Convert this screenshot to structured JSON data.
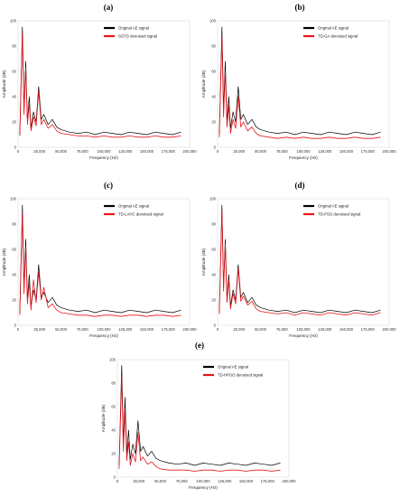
{
  "chart_data": [
    {
      "type": "line",
      "panel_label": "(a)",
      "xlabel": "Frequency (Hz)",
      "ylabel": "Amplitude (dB)",
      "xlim": [
        0,
        200000
      ],
      "ylim": [
        0,
        100
      ],
      "x_ticks": [
        "0",
        "25,000",
        "50,000",
        "75,000",
        "100,000",
        "125,000",
        "150,000",
        "175,000",
        "200,000"
      ],
      "y_ticks": [
        "0",
        "20",
        "40",
        "60",
        "80",
        "100"
      ],
      "legend_position": "top-right",
      "colors": {
        "original": "#000000",
        "denoised": "#e8141b"
      },
      "series": [
        {
          "name": "Original AE signal",
          "x": [
            2000,
            5000,
            7000,
            9000,
            11000,
            13000,
            15000,
            18000,
            21000,
            24000,
            27000,
            30000,
            35000,
            40000,
            45000,
            50000,
            60000,
            70000,
            80000,
            90000,
            100000,
            110000,
            120000,
            130000,
            140000,
            150000,
            160000,
            170000,
            180000,
            190000
          ],
          "y": [
            10,
            95,
            30,
            68,
            20,
            40,
            15,
            28,
            20,
            48,
            22,
            26,
            18,
            22,
            16,
            14,
            12,
            11,
            12,
            10,
            12,
            11,
            10,
            12,
            11,
            10,
            12,
            11,
            10,
            12
          ]
        },
        {
          "name": "SOTD denoised signal",
          "x": [
            2000,
            5000,
            7000,
            9000,
            11000,
            13000,
            15000,
            18000,
            21000,
            24000,
            27000,
            30000,
            35000,
            40000,
            45000,
            50000,
            60000,
            70000,
            80000,
            90000,
            100000,
            110000,
            120000,
            130000,
            140000,
            150000,
            160000,
            170000,
            180000,
            190000
          ],
          "y": [
            9,
            90,
            26,
            63,
            18,
            35,
            13,
            24,
            17,
            44,
            18,
            22,
            15,
            18,
            13,
            11,
            10,
            9,
            9,
            8,
            9,
            8,
            8,
            9,
            8,
            8,
            9,
            8,
            8,
            9
          ]
        }
      ]
    },
    {
      "type": "line",
      "panel_label": "(b)",
      "xlabel": "Frequency (Hz)",
      "ylabel": "Amplitude (dB)",
      "xlim": [
        0,
        200000
      ],
      "ylim": [
        0,
        100
      ],
      "x_ticks": [
        "0",
        "25,000",
        "50,000",
        "75,000",
        "100,000",
        "125,000",
        "150,000",
        "175,000",
        "200,000"
      ],
      "y_ticks": [
        "0",
        "20",
        "40",
        "60",
        "80",
        "100"
      ],
      "legend_position": "top-right",
      "colors": {
        "original": "#000000",
        "denoised": "#e8141b"
      },
      "series": [
        {
          "name": "Original AE signal",
          "x": [
            2000,
            5000,
            7000,
            9000,
            11000,
            13000,
            15000,
            18000,
            21000,
            24000,
            27000,
            30000,
            35000,
            40000,
            45000,
            50000,
            60000,
            70000,
            80000,
            90000,
            100000,
            110000,
            120000,
            130000,
            140000,
            150000,
            160000,
            170000,
            180000,
            190000
          ],
          "y": [
            10,
            95,
            30,
            68,
            20,
            40,
            15,
            28,
            20,
            48,
            22,
            26,
            18,
            22,
            16,
            14,
            12,
            11,
            12,
            10,
            12,
            11,
            10,
            12,
            11,
            10,
            12,
            11,
            10,
            12
          ]
        },
        {
          "name": "TD-GA denoised signal",
          "x": [
            2000,
            5000,
            7000,
            9000,
            11000,
            13000,
            15000,
            18000,
            21000,
            24000,
            27000,
            30000,
            35000,
            40000,
            45000,
            50000,
            60000,
            70000,
            80000,
            90000,
            100000,
            110000,
            120000,
            130000,
            140000,
            150000,
            160000,
            170000,
            180000,
            190000
          ],
          "y": [
            8,
            88,
            24,
            60,
            16,
            33,
            11,
            22,
            15,
            40,
            16,
            20,
            13,
            16,
            11,
            9,
            8,
            7,
            8,
            7,
            8,
            7,
            7,
            8,
            7,
            7,
            8,
            7,
            7,
            8
          ]
        }
      ]
    },
    {
      "type": "line",
      "panel_label": "(c)",
      "xlabel": "Frequency (Hz)",
      "ylabel": "Amplitude (dB)",
      "xlim": [
        0,
        200000
      ],
      "ylim": [
        0,
        100
      ],
      "x_ticks": [
        "0",
        "25,000",
        "50,000",
        "75,000",
        "100,000",
        "125,000",
        "150,000",
        "175,000",
        "200,000"
      ],
      "y_ticks": [
        "0",
        "20",
        "40",
        "60",
        "80",
        "100"
      ],
      "legend_position": "top-right",
      "colors": {
        "original": "#000000",
        "denoised": "#e8141b"
      },
      "series": [
        {
          "name": "Original AE signal",
          "x": [
            2000,
            5000,
            7000,
            9000,
            11000,
            13000,
            15000,
            18000,
            21000,
            24000,
            27000,
            30000,
            35000,
            40000,
            45000,
            50000,
            60000,
            70000,
            80000,
            90000,
            100000,
            110000,
            120000,
            130000,
            140000,
            150000,
            160000,
            170000,
            180000,
            190000
          ],
          "y": [
            10,
            95,
            30,
            68,
            20,
            40,
            15,
            28,
            20,
            48,
            22,
            26,
            18,
            22,
            16,
            14,
            12,
            11,
            12,
            10,
            12,
            11,
            10,
            12,
            11,
            10,
            12,
            11,
            10,
            12
          ]
        },
        {
          "name": "TD-LAHC denoised signal",
          "x": [
            2000,
            5000,
            7000,
            9000,
            11000,
            13000,
            15000,
            18000,
            21000,
            24000,
            27000,
            30000,
            35000,
            40000,
            45000,
            50000,
            60000,
            70000,
            80000,
            90000,
            100000,
            110000,
            120000,
            130000,
            140000,
            150000,
            160000,
            170000,
            180000,
            190000
          ],
          "y": [
            8,
            89,
            25,
            62,
            17,
            34,
            12,
            36,
            18,
            42,
            20,
            30,
            14,
            17,
            12,
            10,
            9,
            8,
            8,
            7,
            8,
            8,
            7,
            8,
            8,
            7,
            8,
            8,
            7,
            8
          ]
        }
      ]
    },
    {
      "type": "line",
      "panel_label": "(d)",
      "xlabel": "Frequency (Hz)",
      "ylabel": "Amplitude (dB)",
      "xlim": [
        0,
        200000
      ],
      "ylim": [
        0,
        100
      ],
      "x_ticks": [
        "0",
        "25,000",
        "50,000",
        "75,000",
        "100,000",
        "125,000",
        "150,000",
        "175,000",
        "200,000"
      ],
      "y_ticks": [
        "0",
        "20",
        "40",
        "60",
        "80",
        "100"
      ],
      "legend_position": "top-right",
      "colors": {
        "original": "#000000",
        "denoised": "#e8141b"
      },
      "series": [
        {
          "name": "Original AE signal",
          "x": [
            2000,
            5000,
            7000,
            9000,
            11000,
            13000,
            15000,
            18000,
            21000,
            24000,
            27000,
            30000,
            35000,
            40000,
            45000,
            50000,
            60000,
            70000,
            80000,
            90000,
            100000,
            110000,
            120000,
            130000,
            140000,
            150000,
            160000,
            170000,
            180000,
            190000
          ],
          "y": [
            10,
            95,
            30,
            68,
            20,
            40,
            15,
            28,
            20,
            48,
            22,
            26,
            18,
            22,
            16,
            14,
            12,
            11,
            12,
            10,
            12,
            11,
            10,
            12,
            11,
            10,
            12,
            11,
            10,
            12
          ]
        },
        {
          "name": "TD-PSO denoised signal",
          "x": [
            2000,
            5000,
            7000,
            9000,
            11000,
            13000,
            15000,
            18000,
            21000,
            24000,
            27000,
            30000,
            35000,
            40000,
            45000,
            50000,
            60000,
            70000,
            80000,
            90000,
            100000,
            110000,
            120000,
            130000,
            140000,
            150000,
            160000,
            170000,
            180000,
            190000
          ],
          "y": [
            9,
            91,
            27,
            64,
            18,
            36,
            13,
            25,
            17,
            45,
            19,
            23,
            16,
            19,
            13,
            11,
            10,
            9,
            10,
            8,
            10,
            9,
            8,
            10,
            9,
            8,
            10,
            9,
            8,
            10
          ]
        }
      ]
    },
    {
      "type": "line",
      "panel_label": "(e)",
      "xlabel": "Frequency (Hz)",
      "ylabel": "Amplitude (dB)",
      "xlim": [
        0,
        200000
      ],
      "ylim": [
        0,
        100
      ],
      "x_ticks": [
        "0",
        "25,000",
        "50,000",
        "75,000",
        "100,000",
        "125,000",
        "150,000",
        "175,000",
        "200,000"
      ],
      "y_ticks": [
        "0",
        "20",
        "40",
        "60",
        "80",
        "100"
      ],
      "legend_position": "top-right",
      "colors": {
        "original": "#000000",
        "denoised": "#e8141b"
      },
      "series": [
        {
          "name": "Original AE signal",
          "x": [
            2000,
            5000,
            7000,
            9000,
            11000,
            13000,
            15000,
            18000,
            21000,
            24000,
            27000,
            30000,
            35000,
            40000,
            45000,
            50000,
            60000,
            70000,
            80000,
            90000,
            100000,
            110000,
            120000,
            130000,
            140000,
            150000,
            160000,
            170000,
            180000,
            190000
          ],
          "y": [
            10,
            95,
            30,
            68,
            20,
            40,
            15,
            28,
            20,
            48,
            22,
            26,
            18,
            22,
            16,
            14,
            12,
            11,
            12,
            10,
            12,
            11,
            10,
            12,
            11,
            10,
            12,
            11,
            10,
            12
          ]
        },
        {
          "name": "TD-HPSO denoised signal",
          "x": [
            2000,
            5000,
            7000,
            9000,
            11000,
            13000,
            15000,
            18000,
            21000,
            24000,
            27000,
            30000,
            35000,
            40000,
            45000,
            50000,
            60000,
            70000,
            80000,
            90000,
            100000,
            110000,
            120000,
            130000,
            140000,
            150000,
            160000,
            170000,
            180000,
            190000
          ],
          "y": [
            7,
            86,
            22,
            58,
            14,
            30,
            10,
            20,
            13,
            38,
            14,
            17,
            11,
            13,
            9,
            7,
            6,
            6,
            6,
            5,
            6,
            6,
            5,
            6,
            6,
            5,
            6,
            6,
            5,
            6
          ]
        }
      ]
    }
  ]
}
